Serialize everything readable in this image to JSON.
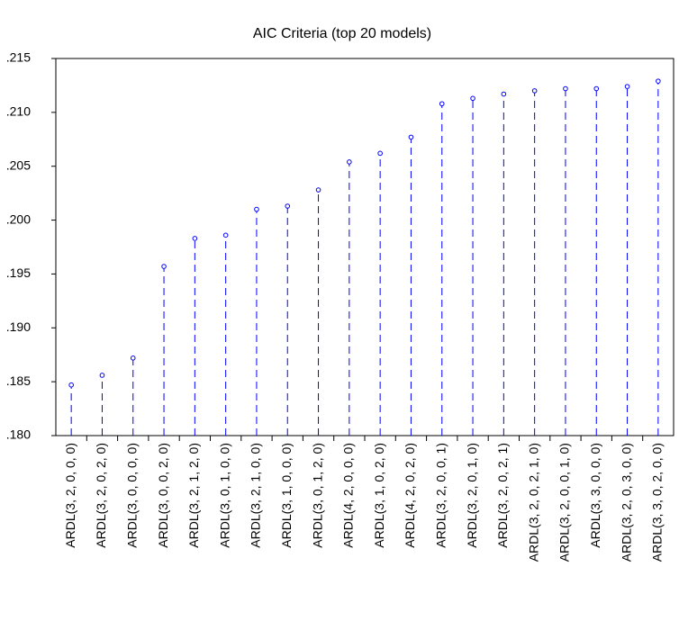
{
  "chart_data": {
    "type": "stem",
    "title": "AIC Criteria (top 20 models)",
    "categories": [
      "ARDL(3, 2, 0, 0, 0)",
      "ARDL(3, 2, 0, 2, 0)",
      "ARDL(3, 0, 0, 0, 0)",
      "ARDL(3, 0, 0, 2, 0)",
      "ARDL(3, 2, 1, 2, 0)",
      "ARDL(3, 0, 1, 0, 0)",
      "ARDL(3, 2, 1, 0, 0)",
      "ARDL(3, 1, 0, 0, 0)",
      "ARDL(3, 0, 1, 2, 0)",
      "ARDL(4, 2, 0, 0, 0)",
      "ARDL(3, 1, 0, 2, 0)",
      "ARDL(4, 2, 0, 2, 0)",
      "ARDL(3, 2, 0, 0, 1)",
      "ARDL(3, 2, 0, 1, 0)",
      "ARDL(3, 2, 0, 2, 1)",
      "ARDL(3, 2, 0, 2, 1, 0)",
      "ARDL(3, 2, 0, 0, 1, 0)",
      "ARDL(3, 3, 0, 0, 0)",
      "ARDL(3, 2, 0, 3, 0, 0)",
      "ARDL(3, 3, 0, 2, 0, 0)"
    ],
    "values": [
      0.1847,
      0.1856,
      0.1872,
      0.1957,
      0.1983,
      0.1986,
      0.201,
      0.2013,
      0.2028,
      0.2054,
      0.2062,
      0.2077,
      0.2108,
      0.2113,
      0.2117,
      0.212,
      0.2122,
      0.2122,
      0.2124,
      0.2129
    ],
    "color": "#0000ff",
    "ylim": [
      0.18,
      0.215
    ],
    "yticks": [
      {
        "value": 0.18,
        "label": ".180"
      },
      {
        "value": 0.185,
        "label": ".185"
      },
      {
        "value": 0.19,
        "label": ".190"
      },
      {
        "value": 0.195,
        "label": ".195"
      },
      {
        "value": 0.2,
        "label": ".200"
      },
      {
        "value": 0.205,
        "label": ".205"
      },
      {
        "value": 0.21,
        "label": ".210"
      },
      {
        "value": 0.215,
        "label": ".215"
      }
    ],
    "grid": false
  }
}
